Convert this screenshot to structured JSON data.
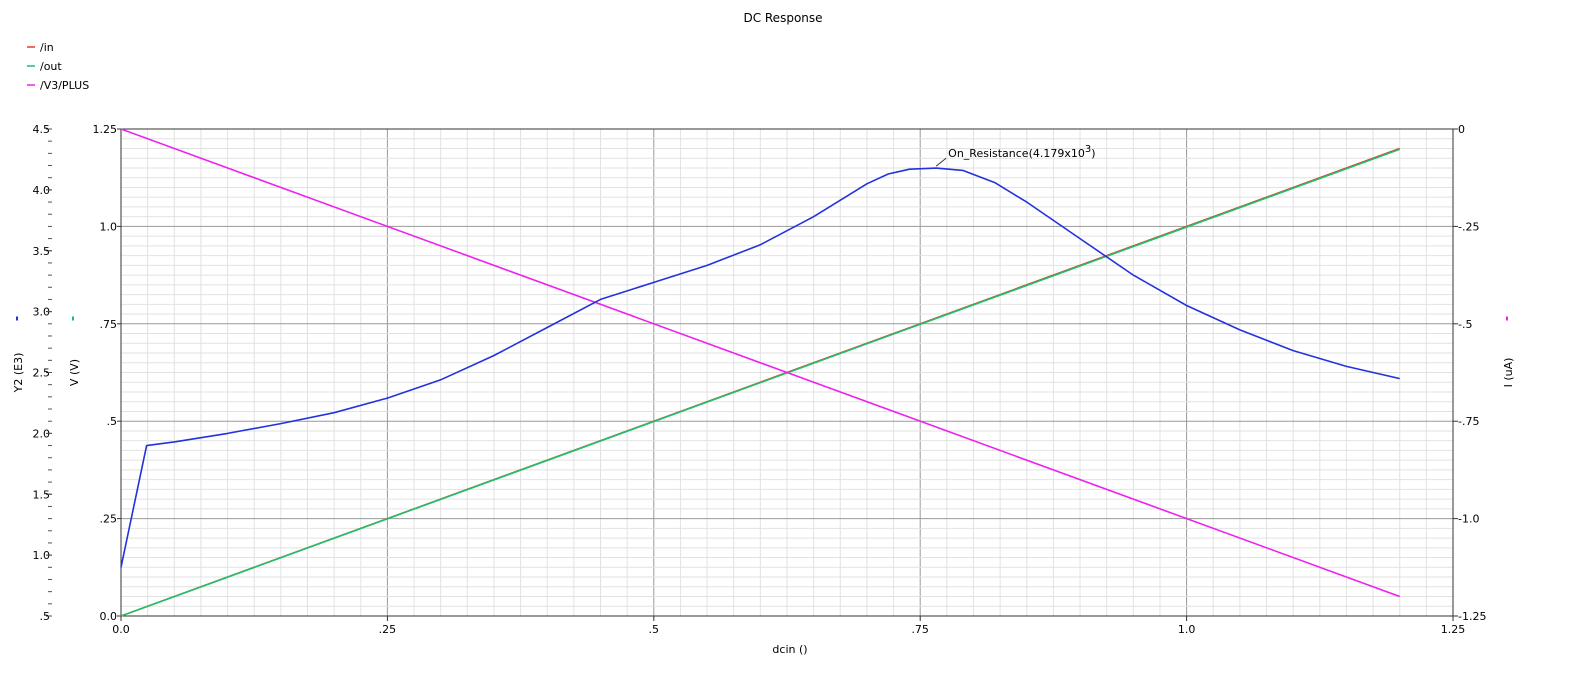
{
  "chart_data": {
    "type": "line",
    "title": "DC Response",
    "x": {
      "label": "dcin ()",
      "range": [
        0,
        1.25
      ],
      "ticks": [
        0,
        0.25,
        0.5,
        0.75,
        1.0,
        1.25
      ],
      "tick_labels": [
        "0.0",
        ".25",
        ".5",
        ".75",
        "1.0",
        "1.25"
      ]
    },
    "y_axes": [
      {
        "id": "y2",
        "label": "Y2 (E3)",
        "side": "left-outer",
        "range": [
          0.5,
          4.5
        ],
        "ticks": [
          0.5,
          1.0,
          1.5,
          2.0,
          2.5,
          3.0,
          3.5,
          4.0,
          4.5
        ],
        "tick_labels": [
          ".5",
          "1.0",
          "1.5",
          "2.0",
          "2.5",
          "3.0",
          "3.5",
          "4.0",
          "4.5"
        ]
      },
      {
        "id": "v",
        "label": "V (V)",
        "side": "left-inner",
        "range": [
          0,
          1.25
        ],
        "ticks": [
          0,
          0.25,
          0.5,
          0.75,
          1.0,
          1.25
        ],
        "tick_labels": [
          "0.0",
          ".25",
          ".5",
          ".75",
          "1.0",
          "1.25"
        ]
      },
      {
        "id": "i",
        "label": "I (uA)",
        "side": "right",
        "range": [
          -1.25,
          0
        ],
        "ticks": [
          0,
          -0.25,
          -0.5,
          -0.75,
          -1.0,
          -1.25
        ],
        "tick_labels": [
          "0",
          "-.25",
          "-.5",
          "-.75",
          "-1.0",
          "-1.25"
        ]
      }
    ],
    "legend_position": "top-left",
    "grid": true,
    "series": [
      {
        "name": "/in",
        "axis": "v",
        "color": "#e53c2a",
        "x": [
          0,
          1.2
        ],
        "y": [
          0,
          1.2
        ]
      },
      {
        "name": "/out",
        "axis": "v",
        "color": "#1ec06c",
        "x": [
          0,
          1.2
        ],
        "y": [
          0,
          1.198
        ]
      },
      {
        "name": "/V3/PLUS",
        "axis": "i",
        "color": "#ee22ee",
        "x": [
          0,
          1.2
        ],
        "y": [
          0,
          -1.2
        ]
      },
      {
        "axis": "y2",
        "color": "#2233dd",
        "x": [
          0,
          0.024,
          0.05,
          0.1,
          0.15,
          0.2,
          0.25,
          0.3,
          0.35,
          0.4,
          0.45,
          0.5,
          0.55,
          0.6,
          0.65,
          0.7,
          0.72,
          0.74,
          0.765,
          0.79,
          0.82,
          0.85,
          0.9,
          0.95,
          1.0,
          1.05,
          1.1,
          1.15,
          1.2
        ],
        "y": [
          0.9,
          1.9,
          1.93,
          2.0,
          2.08,
          2.17,
          2.29,
          2.44,
          2.64,
          2.87,
          3.1,
          3.24,
          3.38,
          3.55,
          3.78,
          4.05,
          4.13,
          4.17,
          4.179,
          4.16,
          4.06,
          3.9,
          3.6,
          3.3,
          3.05,
          2.85,
          2.68,
          2.55,
          2.45
        ]
      }
    ],
    "annotations": [
      {
        "text": "On_Resistance(4.179x10",
        "superscript": "3",
        "suffix": ")",
        "axis": "y2",
        "x": 0.765,
        "y": 4.179
      }
    ]
  }
}
